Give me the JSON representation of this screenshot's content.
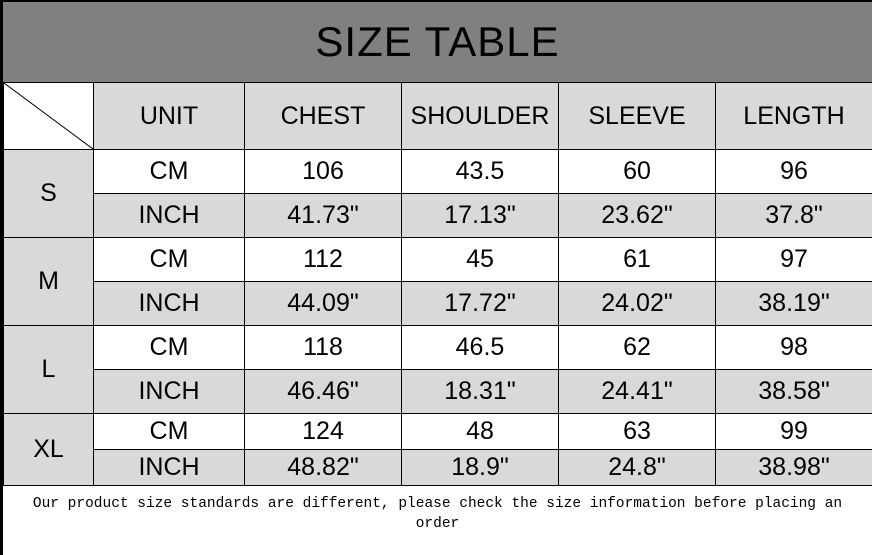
{
  "title": "SIZE TABLE",
  "headers": [
    "UNIT",
    "CHEST",
    "SHOULDER",
    "SLEEVE",
    "LENGTH"
  ],
  "sizes": [
    {
      "size": "S",
      "rows": [
        [
          "CM",
          "106",
          "43.5",
          "60",
          "96"
        ],
        [
          "INCH",
          "41.73\"",
          "17.13\"",
          "23.62\"",
          "37.8\""
        ]
      ]
    },
    {
      "size": "M",
      "rows": [
        [
          "CM",
          "112",
          "45",
          "61",
          "97"
        ],
        [
          "INCH",
          "44.09\"",
          "17.72\"",
          "24.02\"",
          "38.19\""
        ]
      ]
    },
    {
      "size": "L",
      "rows": [
        [
          "CM",
          "118",
          "46.5",
          "62",
          "98"
        ],
        [
          "INCH",
          "46.46\"",
          "18.31\"",
          "24.41\"",
          "38.58\""
        ]
      ]
    },
    {
      "size": "XL",
      "rows": [
        [
          "CM",
          "124",
          "48",
          "63",
          "99"
        ],
        [
          "INCH",
          "48.82\"",
          "18.9\"",
          "24.8\"",
          "38.98\""
        ]
      ]
    }
  ],
  "note": "Our product size standards are different, please check the size information before placing an order",
  "colors": {
    "title_bg": "#808080",
    "header_bg": "#d9d9d9",
    "alt_row_bg": "#d9d9d9"
  }
}
